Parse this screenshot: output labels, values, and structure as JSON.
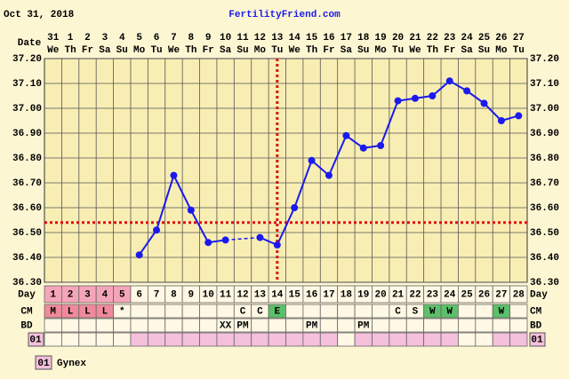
{
  "header": {
    "date": "Oct 31, 2018",
    "site": "FertilityFriend.com"
  },
  "chart_data": {
    "type": "line",
    "x_label": "Date",
    "dates": [
      "31",
      "1",
      "2",
      "3",
      "4",
      "5",
      "6",
      "7",
      "8",
      "9",
      "10",
      "11",
      "12",
      "13",
      "14",
      "15",
      "16",
      "17",
      "18",
      "19",
      "20",
      "21",
      "22",
      "23",
      "24",
      "25",
      "26",
      "27"
    ],
    "weekdays": [
      "We",
      "Th",
      "Fr",
      "Sa",
      "Su",
      "Mo",
      "Tu",
      "We",
      "Th",
      "Fr",
      "Sa",
      "Su",
      "Mo",
      "Tu",
      "We",
      "Th",
      "Fr",
      "Sa",
      "Su",
      "Mo",
      "Tu",
      "We",
      "Th",
      "Fr",
      "Sa",
      "Su",
      "Mo",
      "Tu"
    ],
    "x": [
      1,
      2,
      3,
      4,
      5,
      6,
      7,
      8,
      9,
      10,
      11,
      12,
      13,
      14,
      15,
      16,
      17,
      18,
      19,
      20,
      21,
      22,
      23,
      24,
      25,
      26,
      27,
      28
    ],
    "series": [
      {
        "color": "#1a1aee",
        "values": [
          null,
          null,
          null,
          null,
          null,
          36.41,
          36.51,
          36.73,
          36.59,
          36.46,
          36.47,
          null,
          36.48,
          36.45,
          36.6,
          36.79,
          36.73,
          36.89,
          36.84,
          36.85,
          37.03,
          37.04,
          37.05,
          37.11,
          37.07,
          37.02,
          36.95,
          36.97
        ]
      }
    ],
    "ylim": [
      36.3,
      37.2
    ],
    "yticks": [
      {
        "value": 36.3,
        "label": "36.30"
      },
      {
        "value": 36.4,
        "label": "36.40"
      },
      {
        "value": 36.5,
        "label": "36.50"
      },
      {
        "value": 36.6,
        "label": "36.60"
      },
      {
        "value": 36.7,
        "label": "36.70"
      },
      {
        "value": 36.8,
        "label": "36.80"
      },
      {
        "value": 36.9,
        "label": "36.90"
      },
      {
        "value": 37.0,
        "label": "37.00"
      },
      {
        "value": 37.1,
        "label": "37.10"
      },
      {
        "value": 37.2,
        "label": "37.20"
      }
    ],
    "grid": true,
    "coverline": 36.54,
    "ovulation_day": 14,
    "period_days": 5
  },
  "rows": {
    "day_label": "Day",
    "cm_label": "CM",
    "bd_label": "BD",
    "med_label": "01",
    "cm": [
      "M",
      "L",
      "L",
      "L",
      "*",
      null,
      null,
      null,
      null,
      null,
      null,
      "C",
      "C",
      "E",
      null,
      null,
      null,
      null,
      null,
      null,
      "C",
      "S",
      "W",
      "W",
      null,
      null,
      "W",
      null
    ],
    "cm_fill": [
      "#f08a9a",
      "#f08a9a",
      "#f08a9a",
      "#f08a9a",
      null,
      null,
      null,
      null,
      null,
      null,
      null,
      null,
      null,
      "#5cc06a",
      null,
      null,
      null,
      null,
      null,
      null,
      null,
      null,
      "#5cc06a",
      "#5cc06a",
      null,
      null,
      "#5cc06a",
      null
    ],
    "bd": [
      null,
      null,
      null,
      null,
      null,
      null,
      null,
      null,
      null,
      null,
      "XX",
      "PM",
      null,
      null,
      null,
      "PM",
      null,
      null,
      "PM",
      null,
      null,
      null,
      null,
      null,
      null,
      null,
      null,
      null
    ],
    "med": [
      false,
      false,
      false,
      false,
      false,
      true,
      true,
      true,
      true,
      true,
      true,
      true,
      true,
      true,
      true,
      true,
      true,
      false,
      true,
      true,
      true,
      true,
      true,
      true,
      false,
      false,
      true,
      true
    ]
  },
  "legend": {
    "code": "01",
    "name": "Gynex"
  }
}
